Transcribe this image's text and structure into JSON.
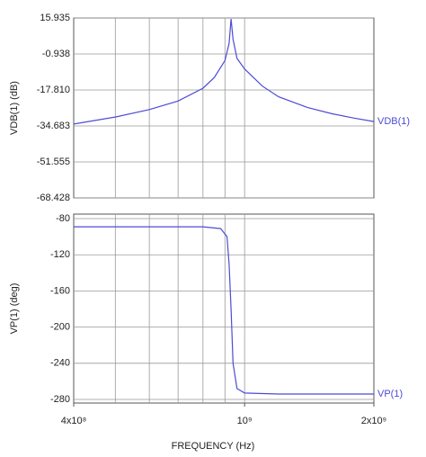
{
  "chart_data": [
    {
      "type": "line",
      "ylabel": "VDB(1) (dB)",
      "xlog": true,
      "xlim": [
        400000000,
        2000000000
      ],
      "xgrid": [
        500000000,
        600000000,
        700000000,
        800000000,
        900000000,
        1000000000
      ],
      "ylim": [
        -68.428,
        15.935
      ],
      "yticks": [
        {
          "value": 15.935,
          "label": "15.935"
        },
        {
          "value": -0.938,
          "label": "-0.938"
        },
        {
          "value": -17.81,
          "label": "-17.810"
        },
        {
          "value": -34.683,
          "label": "-34.683"
        },
        {
          "value": -51.555,
          "label": "-51.555"
        },
        {
          "value": -68.428,
          "label": "-68.428"
        }
      ],
      "x": [
        400000000,
        500000000,
        600000000,
        700000000,
        800000000,
        850000000,
        900000000,
        920000000,
        930000000,
        940000000,
        960000000,
        1000000000,
        1100000000,
        1200000000,
        1400000000,
        1600000000,
        1800000000,
        2000000000
      ],
      "series": [
        {
          "name": "VDB(1)",
          "color": "#4b4bd6",
          "values": [
            -33.8,
            -30.5,
            -27,
            -23,
            -17,
            -12,
            -4,
            4,
            15.5,
            6,
            -3,
            -8,
            -16,
            -21,
            -26,
            -29,
            -31,
            -32.6
          ]
        }
      ]
    },
    {
      "type": "line",
      "xlabel": "FREQUENCY (Hz)",
      "ylabel": "VP(1) (deg)",
      "xlog": true,
      "xlim": [
        400000000,
        2000000000
      ],
      "xgrid": [
        500000000,
        600000000,
        700000000,
        800000000,
        900000000,
        1000000000
      ],
      "xticks": [
        {
          "value": 400000000,
          "label": "4x10⁸"
        },
        {
          "value": 1000000000,
          "label": "10⁹"
        },
        {
          "value": 2000000000,
          "label": "2x10⁹"
        }
      ],
      "ylim": [
        -284,
        -75
      ],
      "yticks": [
        -80,
        -120,
        -160,
        -200,
        -240,
        -280
      ],
      "x": [
        400000000,
        600000000,
        800000000,
        880000000,
        910000000,
        920000000,
        930000000,
        940000000,
        960000000,
        1000000000,
        1200000000,
        2000000000
      ],
      "series": [
        {
          "name": "VP(1)",
          "color": "#4b4bd6",
          "values": [
            -89,
            -89,
            -89,
            -91,
            -100,
            -130,
            -180,
            -240,
            -268,
            -273,
            -274,
            -274
          ]
        }
      ]
    }
  ]
}
